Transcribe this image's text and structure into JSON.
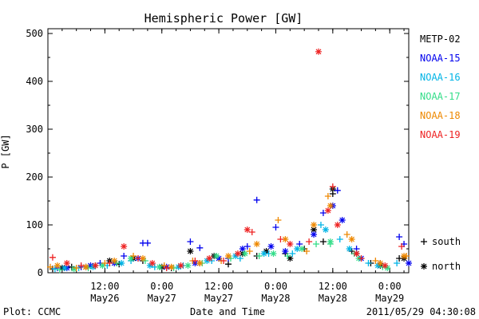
{
  "chart_data": {
    "type": "scatter",
    "title": "Hemispheric Power [GW]",
    "ylabel": "P [GW]",
    "xlabel": "Date and Time",
    "ylim": [
      0,
      510
    ],
    "yticks": [
      0,
      100,
      200,
      300,
      400,
      500
    ],
    "xlim": [
      "2011-05-26T00:00",
      "2011-05-29T04:00"
    ],
    "xticks": [
      {
        "t": "2011-05-26T12:00",
        "line1": "12:00",
        "line2": "May26"
      },
      {
        "t": "2011-05-27T00:00",
        "line1": "0:00",
        "line2": "May27"
      },
      {
        "t": "2011-05-27T12:00",
        "line1": "12:00",
        "line2": "May27"
      },
      {
        "t": "2011-05-28T00:00",
        "line1": "0:00",
        "line2": "May28"
      },
      {
        "t": "2011-05-28T12:00",
        "line1": "12:00",
        "line2": "May28"
      },
      {
        "t": "2011-05-29T00:00",
        "line1": "0:00",
        "line2": "May29"
      }
    ],
    "legend_position": "right",
    "markers": {
      "south": "+",
      "north": "*"
    },
    "series": [
      {
        "name": "METP-02",
        "color": "#000000",
        "south": [
          [
            "2011-05-26T01:00",
            8
          ],
          [
            "2011-05-26T05:00",
            12
          ],
          [
            "2011-05-26T10:00",
            15
          ],
          [
            "2011-05-26T15:00",
            18
          ],
          [
            "2011-05-26T20:00",
            25
          ],
          [
            "2011-05-27T02:00",
            10
          ],
          [
            "2011-05-27T08:00",
            20
          ],
          [
            "2011-05-27T14:00",
            18
          ],
          [
            "2011-05-27T20:00",
            35
          ],
          [
            "2011-05-28T02:00",
            40
          ],
          [
            "2011-05-28T06:00",
            50
          ],
          [
            "2011-05-28T10:00",
            65
          ],
          [
            "2011-05-28T12:00",
            165
          ],
          [
            "2011-05-28T16:00",
            45
          ],
          [
            "2011-05-28T20:00",
            20
          ],
          [
            "2011-05-29T02:00",
            30
          ]
        ],
        "north": [
          [
            "2011-05-26T03:00",
            10
          ],
          [
            "2011-05-26T08:00",
            12
          ],
          [
            "2011-05-26T13:00",
            25
          ],
          [
            "2011-05-26T18:00",
            30
          ],
          [
            "2011-05-27T00:00",
            12
          ],
          [
            "2011-05-27T06:00",
            45
          ],
          [
            "2011-05-27T11:00",
            35
          ],
          [
            "2011-05-27T17:00",
            40
          ],
          [
            "2011-05-27T22:00",
            45
          ],
          [
            "2011-05-28T03:00",
            30
          ],
          [
            "2011-05-28T08:00",
            90
          ],
          [
            "2011-05-28T12:00",
            175
          ],
          [
            "2011-05-28T17:00",
            40
          ],
          [
            "2011-05-28T22:00",
            15
          ],
          [
            "2011-05-29T03:00",
            30
          ]
        ]
      },
      {
        "name": "NOAA-15",
        "color": "#0000ee",
        "south": [
          [
            "2011-05-26T02:00",
            10
          ],
          [
            "2011-05-26T07:00",
            12
          ],
          [
            "2011-05-26T11:00",
            20
          ],
          [
            "2011-05-26T16:00",
            35
          ],
          [
            "2011-05-26T20:00",
            62
          ],
          [
            "2011-05-26T21:00",
            62
          ],
          [
            "2011-05-27T06:00",
            65
          ],
          [
            "2011-05-27T08:00",
            52
          ],
          [
            "2011-05-27T14:00",
            30
          ],
          [
            "2011-05-27T18:00",
            55
          ],
          [
            "2011-05-27T20:00",
            152
          ],
          [
            "2011-05-28T00:00",
            95
          ],
          [
            "2011-05-28T05:00",
            60
          ],
          [
            "2011-05-28T10:00",
            125
          ],
          [
            "2011-05-28T13:00",
            172
          ],
          [
            "2011-05-28T17:00",
            50
          ],
          [
            "2011-05-28T22:00",
            20
          ],
          [
            "2011-05-29T02:00",
            75
          ],
          [
            "2011-05-29T03:00",
            60
          ]
        ],
        "north": [
          [
            "2011-05-26T04:00",
            10
          ],
          [
            "2011-05-26T09:00",
            15
          ],
          [
            "2011-05-26T14:00",
            20
          ],
          [
            "2011-05-26T19:00",
            30
          ],
          [
            "2011-05-27T01:00",
            12
          ],
          [
            "2011-05-27T07:00",
            20
          ],
          [
            "2011-05-27T12:00",
            30
          ],
          [
            "2011-05-27T17:00",
            50
          ],
          [
            "2011-05-27T23:00",
            55
          ],
          [
            "2011-05-28T02:00",
            45
          ],
          [
            "2011-05-28T08:00",
            80
          ],
          [
            "2011-05-28T12:00",
            140
          ],
          [
            "2011-05-28T14:00",
            110
          ],
          [
            "2011-05-28T18:00",
            30
          ],
          [
            "2011-05-29T04:00",
            20
          ]
        ]
      },
      {
        "name": "NOAA-16",
        "color": "#00b4e6",
        "south": [
          [
            "2011-05-26T01:30",
            8
          ],
          [
            "2011-05-26T06:30",
            10
          ],
          [
            "2011-05-26T12:30",
            15
          ],
          [
            "2011-05-26T17:30",
            25
          ],
          [
            "2011-05-26T22:30",
            12
          ],
          [
            "2011-05-27T04:30",
            15
          ],
          [
            "2011-05-27T10:30",
            25
          ],
          [
            "2011-05-27T16:30",
            30
          ],
          [
            "2011-05-27T22:30",
            40
          ],
          [
            "2011-05-28T03:30",
            40
          ],
          [
            "2011-05-28T09:30",
            100
          ],
          [
            "2011-05-28T13:30",
            70
          ],
          [
            "2011-05-28T19:30",
            20
          ],
          [
            "2011-05-29T01:30",
            20
          ]
        ],
        "north": [
          [
            "2011-05-26T03:30",
            10
          ],
          [
            "2011-05-26T09:30",
            12
          ],
          [
            "2011-05-26T15:30",
            20
          ],
          [
            "2011-05-26T21:30",
            15
          ],
          [
            "2011-05-27T03:30",
            12
          ],
          [
            "2011-05-27T09:30",
            25
          ],
          [
            "2011-05-27T15:30",
            35
          ],
          [
            "2011-05-27T21:30",
            40
          ],
          [
            "2011-05-28T04:30",
            50
          ],
          [
            "2011-05-28T10:30",
            90
          ],
          [
            "2011-05-28T15:30",
            50
          ],
          [
            "2011-05-28T21:30",
            15
          ]
        ]
      },
      {
        "name": "NOAA-17",
        "color": "#33dd88",
        "south": [
          [
            "2011-05-26T02:30",
            6
          ],
          [
            "2011-05-26T08:30",
            10
          ],
          [
            "2011-05-26T14:30",
            20
          ],
          [
            "2011-05-26T20:30",
            25
          ],
          [
            "2011-05-27T02:30",
            10
          ],
          [
            "2011-05-27T08:30",
            20
          ],
          [
            "2011-05-27T14:30",
            30
          ],
          [
            "2011-05-27T20:30",
            35
          ],
          [
            "2011-05-28T02:30",
            35
          ],
          [
            "2011-05-28T08:30",
            60
          ],
          [
            "2011-05-28T11:30",
            60
          ],
          [
            "2011-05-28T16:30",
            40
          ],
          [
            "2011-05-28T22:30",
            12
          ]
        ],
        "north": [
          [
            "2011-05-26T05:30",
            8
          ],
          [
            "2011-05-26T11:30",
            15
          ],
          [
            "2011-05-26T17:30",
            30
          ],
          [
            "2011-05-26T23:30",
            12
          ],
          [
            "2011-05-27T05:30",
            15
          ],
          [
            "2011-05-27T11:30",
            35
          ],
          [
            "2011-05-27T17:30",
            40
          ],
          [
            "2011-05-27T23:30",
            40
          ],
          [
            "2011-05-28T05:30",
            50
          ],
          [
            "2011-05-28T11:30",
            65
          ],
          [
            "2011-05-28T17:30",
            30
          ],
          [
            "2011-05-28T23:30",
            10
          ]
        ]
      },
      {
        "name": "NOAA-18",
        "color": "#ee8800",
        "south": [
          [
            "2011-05-26T00:30",
            12
          ],
          [
            "2011-05-26T06:00",
            10
          ],
          [
            "2011-05-26T12:00",
            20
          ],
          [
            "2011-05-26T18:00",
            35
          ],
          [
            "2011-05-27T00:30",
            15
          ],
          [
            "2011-05-27T06:30",
            25
          ],
          [
            "2011-05-27T12:30",
            25
          ],
          [
            "2011-05-27T18:30",
            45
          ],
          [
            "2011-05-28T00:30",
            110
          ],
          [
            "2011-05-28T06:30",
            45
          ],
          [
            "2011-05-28T11:00",
            160
          ],
          [
            "2011-05-28T15:00",
            80
          ],
          [
            "2011-05-28T21:00",
            25
          ],
          [
            "2011-05-29T03:30",
            35
          ]
        ],
        "north": [
          [
            "2011-05-26T02:00",
            15
          ],
          [
            "2011-05-26T08:00",
            12
          ],
          [
            "2011-05-26T14:00",
            25
          ],
          [
            "2011-05-26T20:00",
            30
          ],
          [
            "2011-05-27T02:00",
            12
          ],
          [
            "2011-05-27T08:00",
            20
          ],
          [
            "2011-05-27T14:00",
            35
          ],
          [
            "2011-05-27T20:00",
            60
          ],
          [
            "2011-05-28T02:00",
            70
          ],
          [
            "2011-05-28T08:00",
            100
          ],
          [
            "2011-05-28T11:30",
            140
          ],
          [
            "2011-05-28T16:00",
            70
          ],
          [
            "2011-05-28T22:00",
            20
          ],
          [
            "2011-05-29T03:00",
            35
          ]
        ]
      },
      {
        "name": "NOAA-19",
        "color": "#ee2222",
        "south": [
          [
            "2011-05-26T01:00",
            32
          ],
          [
            "2011-05-26T07:00",
            15
          ],
          [
            "2011-05-26T13:00",
            20
          ],
          [
            "2011-05-26T19:00",
            30
          ],
          [
            "2011-05-27T01:00",
            10
          ],
          [
            "2011-05-27T07:00",
            25
          ],
          [
            "2011-05-27T13:00",
            25
          ],
          [
            "2011-05-27T19:00",
            85
          ],
          [
            "2011-05-28T01:00",
            70
          ],
          [
            "2011-05-28T07:00",
            65
          ],
          [
            "2011-05-28T12:00",
            180
          ],
          [
            "2011-05-28T18:00",
            30
          ],
          [
            "2011-05-29T02:30",
            55
          ]
        ],
        "north": [
          [
            "2011-05-26T04:00",
            20
          ],
          [
            "2011-05-26T10:00",
            15
          ],
          [
            "2011-05-26T16:00",
            55
          ],
          [
            "2011-05-26T22:00",
            20
          ],
          [
            "2011-05-27T04:00",
            15
          ],
          [
            "2011-05-27T10:00",
            30
          ],
          [
            "2011-05-27T16:00",
            40
          ],
          [
            "2011-05-27T18:00",
            90
          ],
          [
            "2011-05-28T03:00",
            60
          ],
          [
            "2011-05-28T09:00",
            462
          ],
          [
            "2011-05-28T11:00",
            130
          ],
          [
            "2011-05-28T13:00",
            100
          ],
          [
            "2011-05-28T17:00",
            40
          ],
          [
            "2011-05-28T23:00",
            15
          ]
        ]
      }
    ],
    "shape_legend": [
      {
        "marker": "+",
        "label": "south"
      },
      {
        "marker": "*",
        "label": "north"
      }
    ]
  },
  "footer": {
    "left": "Plot: CCMC",
    "center": "Date and Time",
    "right": "2011/05/29 04:30:08"
  }
}
